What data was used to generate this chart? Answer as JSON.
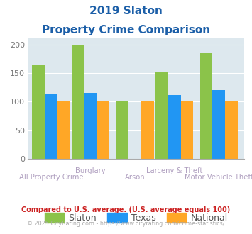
{
  "title_line1": "2019 Slaton",
  "title_line2": "Property Crime Comparison",
  "title_color": "#1c5fa8",
  "categories": [
    "All Property Crime",
    "Burglary",
    "Arson",
    "Larceny & Theft",
    "Motor Vehicle Theft"
  ],
  "slaton": [
    163,
    199,
    101,
    152,
    185
  ],
  "texas": [
    113,
    116,
    null,
    112,
    120
  ],
  "national": [
    100,
    100,
    100,
    100,
    100
  ],
  "color_slaton": "#8BC34A",
  "color_texas": "#2196F3",
  "color_national": "#FFA726",
  "ylim": [
    0,
    210
  ],
  "yticks": [
    0,
    50,
    100,
    150,
    200
  ],
  "bg_color": "#dde8ee",
  "xlabel_color": "#b0a0c0",
  "xlabel_fontsize": 7.2,
  "footnote1": "Compared to U.S. average. (U.S. average equals 100)",
  "footnote2": "© 2025 CityRating.com - https://www.cityrating.com/crime-statistics/",
  "footnote1_color": "#cc2222",
  "footnote2_color": "#aaaaaa",
  "legend_labels": [
    "Slaton",
    "Texas",
    "National"
  ],
  "legend_color": "#555555",
  "bar_width": 0.27
}
